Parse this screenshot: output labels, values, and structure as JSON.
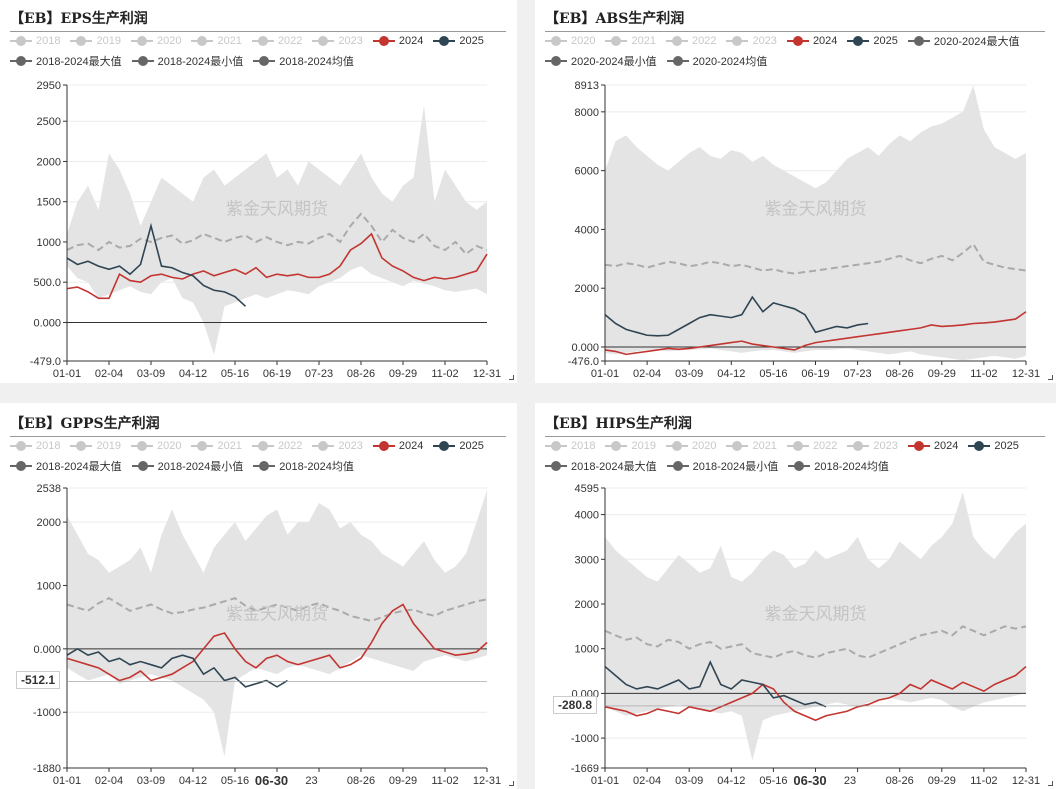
{
  "watermark": "紫金天风期货",
  "colors": {
    "band": "#e4e4e4",
    "s2024": "#c23531",
    "s2025": "#2f4554",
    "avg": "#aaaaaa",
    "off": "#c8c8c8",
    "axis": "#333333",
    "grid": "#ececec"
  },
  "chart_data": [
    {
      "type": "area",
      "title": "【EB】EPS生产利润",
      "legend": [
        {
          "label": "2018",
          "enabled": false
        },
        {
          "label": "2019",
          "enabled": false
        },
        {
          "label": "2020",
          "enabled": false
        },
        {
          "label": "2021",
          "enabled": false
        },
        {
          "label": "2022",
          "enabled": false
        },
        {
          "label": "2023",
          "enabled": false
        },
        {
          "label": "2024",
          "enabled": true,
          "color": "#c23531"
        },
        {
          "label": "2025",
          "enabled": true,
          "color": "#2f4554"
        },
        {
          "label": "2018-2024最大值",
          "enabled": true,
          "color": "#666666"
        },
        {
          "label": "2018-2024最小值",
          "enabled": true,
          "color": "#666666"
        },
        {
          "label": "2018-2024均值",
          "enabled": true,
          "color": "#666666"
        }
      ],
      "ylim": [
        -479,
        2950
      ],
      "ytick_values": [
        -479,
        0,
        500,
        1000,
        1500,
        2000,
        2500,
        2950
      ],
      "ytick_labels": [
        "-479.0",
        "0.000",
        "500.0",
        "1000",
        "1500",
        "2000",
        "2500",
        "2950"
      ],
      "xtick_labels": [
        "01-01",
        "02-04",
        "03-09",
        "04-12",
        "05-16",
        "06-19",
        "07-23",
        "08-26",
        "09-29",
        "11-02",
        "12-31"
      ],
      "cursor": null,
      "max": [
        1100,
        1500,
        1700,
        1400,
        2100,
        1900,
        1600,
        1200,
        1500,
        1800,
        1700,
        1600,
        1500,
        1800,
        1900,
        1700,
        1800,
        1900,
        2000,
        2100,
        1800,
        1900,
        1700,
        2000,
        1900,
        1800,
        1700,
        1900,
        2100,
        1800,
        1600,
        1500,
        1700,
        1800,
        2700,
        1500,
        1900,
        1700,
        1500,
        1400,
        1500
      ],
      "min": [
        700,
        550,
        500,
        300,
        350,
        400,
        450,
        380,
        350,
        500,
        550,
        300,
        250,
        0,
        -400,
        200,
        250,
        300,
        350,
        300,
        350,
        400,
        380,
        350,
        450,
        500,
        550,
        650,
        700,
        600,
        550,
        500,
        450,
        520,
        480,
        450,
        400,
        380,
        400,
        420,
        350
      ],
      "avg": [
        900,
        960,
        980,
        900,
        1000,
        930,
        950,
        1040,
        1000,
        1050,
        1080,
        980,
        1020,
        1100,
        1050,
        1000,
        1050,
        1080,
        1000,
        1060,
        1000,
        960,
        1000,
        980,
        1050,
        1100,
        1000,
        1200,
        1350,
        1200,
        1000,
        1150,
        1050,
        1000,
        1100,
        950,
        900,
        1000,
        850,
        950,
        900
      ],
      "s2024": [
        420,
        440,
        380,
        300,
        300,
        600,
        520,
        500,
        580,
        600,
        560,
        540,
        600,
        640,
        580,
        620,
        660,
        600,
        680,
        560,
        600,
        580,
        600,
        560,
        560,
        600,
        700,
        900,
        980,
        1100,
        800,
        700,
        640,
        560,
        520,
        560,
        540,
        560,
        600,
        640,
        850
      ],
      "s2025": [
        800,
        720,
        760,
        700,
        660,
        700,
        600,
        720,
        1200,
        700,
        680,
        620,
        580,
        460,
        400,
        380,
        320,
        200
      ]
    },
    {
      "type": "area",
      "title": "【EB】ABS生产利润",
      "legend": [
        {
          "label": "2020",
          "enabled": false
        },
        {
          "label": "2021",
          "enabled": false
        },
        {
          "label": "2022",
          "enabled": false
        },
        {
          "label": "2023",
          "enabled": false
        },
        {
          "label": "2024",
          "enabled": true,
          "color": "#c23531"
        },
        {
          "label": "2025",
          "enabled": true,
          "color": "#2f4554"
        },
        {
          "label": "2020-2024最大值",
          "enabled": true,
          "color": "#666666"
        },
        {
          "label": "2020-2024最小值",
          "enabled": true,
          "color": "#666666"
        },
        {
          "label": "2020-2024均值",
          "enabled": true,
          "color": "#666666"
        }
      ],
      "ylim": [
        -476,
        8913
      ],
      "ytick_values": [
        -476,
        0,
        2000,
        4000,
        6000,
        8000,
        8913
      ],
      "ytick_labels": [
        "-476.0",
        "0.000",
        "2000",
        "4000",
        "6000",
        "8000",
        "8913"
      ],
      "xtick_labels": [
        "01-01",
        "02-04",
        "03-09",
        "04-12",
        "05-16",
        "06-19",
        "07-23",
        "08-26",
        "09-29",
        "11-02",
        "12-31"
      ],
      "cursor": null,
      "max": [
        6000,
        7000,
        7200,
        6800,
        6500,
        6200,
        6000,
        6300,
        6600,
        6800,
        6500,
        6400,
        6700,
        6600,
        6300,
        6500,
        6200,
        6000,
        5800,
        5600,
        5400,
        5600,
        6000,
        6400,
        6600,
        6800,
        6500,
        6900,
        7200,
        7000,
        7300,
        7500,
        7600,
        7800,
        8000,
        8900,
        7400,
        6800,
        6600,
        6400,
        6600
      ],
      "min": [
        -200,
        -250,
        -200,
        -150,
        -100,
        -100,
        -150,
        -120,
        -100,
        -80,
        -50,
        -100,
        -150,
        -200,
        -150,
        -100,
        -100,
        -150,
        -200,
        -150,
        -100,
        -100,
        -80,
        -50,
        -100,
        -150,
        -200,
        -250,
        -200,
        -150,
        -250,
        -300,
        -350,
        -400,
        -450,
        -400,
        -350,
        -300,
        -350,
        -400,
        -300
      ],
      "avg": [
        2800,
        2750,
        2850,
        2800,
        2700,
        2800,
        2900,
        2850,
        2750,
        2800,
        2900,
        2850,
        2750,
        2800,
        2700,
        2600,
        2650,
        2550,
        2500,
        2550,
        2600,
        2650,
        2700,
        2750,
        2800,
        2850,
        2900,
        3000,
        3100,
        2950,
        2850,
        3000,
        3100,
        2950,
        3200,
        3500,
        2900,
        2800,
        2700,
        2650,
        2600
      ],
      "s2024": [
        -100,
        -150,
        -250,
        -200,
        -150,
        -100,
        -50,
        -80,
        -50,
        0,
        50,
        100,
        150,
        200,
        100,
        50,
        0,
        -50,
        -100,
        50,
        150,
        200,
        250,
        300,
        350,
        400,
        450,
        500,
        550,
        600,
        650,
        750,
        700,
        720,
        750,
        800,
        820,
        850,
        900,
        950,
        1200
      ],
      "s2025": [
        1100,
        800,
        600,
        500,
        400,
        380,
        400,
        600,
        800,
        1000,
        1100,
        1050,
        1000,
        1100,
        1700,
        1200,
        1500,
        1400,
        1300,
        1100,
        500,
        600,
        700,
        650,
        750,
        800
      ]
    },
    {
      "type": "area",
      "title": "【EB】GPPS生产利润",
      "legend": [
        {
          "label": "2018",
          "enabled": false
        },
        {
          "label": "2019",
          "enabled": false
        },
        {
          "label": "2020",
          "enabled": false
        },
        {
          "label": "2021",
          "enabled": false
        },
        {
          "label": "2022",
          "enabled": false
        },
        {
          "label": "2023",
          "enabled": false
        },
        {
          "label": "2024",
          "enabled": true,
          "color": "#c23531"
        },
        {
          "label": "2025",
          "enabled": true,
          "color": "#2f4554"
        },
        {
          "label": "2018-2024最大值",
          "enabled": true,
          "color": "#666666"
        },
        {
          "label": "2018-2024最小值",
          "enabled": true,
          "color": "#666666"
        },
        {
          "label": "2018-2024均值",
          "enabled": true,
          "color": "#666666"
        }
      ],
      "ylim": [
        -1880,
        2538
      ],
      "ytick_values": [
        -1880,
        -1000,
        0,
        1000,
        2000,
        2538
      ],
      "ytick_labels": [
        "-1880",
        "-1000",
        "0.000",
        "1000",
        "2000",
        "2538"
      ],
      "xtick_labels": [
        "01-01",
        "02-04",
        "03-09",
        "04-12",
        "05-16",
        "",
        "",
        "08-26",
        "09-29",
        "11-02",
        "12-31"
      ],
      "cursor": {
        "x_label": "06-30",
        "x_frac": 0.487,
        "value_label": "-512.1",
        "value": -512.1,
        "x_after": "23"
      },
      "max": [
        2100,
        1800,
        1500,
        1400,
        1200,
        1300,
        1400,
        1600,
        1200,
        1800,
        2200,
        1800,
        1500,
        1200,
        1600,
        1800,
        2000,
        1700,
        1900,
        2100,
        2200,
        1800,
        2000,
        2000,
        2300,
        2200,
        1900,
        2000,
        1800,
        1700,
        1500,
        1400,
        1300,
        1500,
        1700,
        1400,
        1200,
        1300,
        1500,
        2000,
        2500
      ],
      "min": [
        -300,
        -400,
        -500,
        -450,
        -400,
        -550,
        -500,
        -450,
        -400,
        -450,
        -500,
        -600,
        -700,
        -800,
        -1000,
        -1700,
        -500,
        -400,
        -300,
        -350,
        -400,
        -300,
        -250,
        -300,
        -350,
        -400,
        -300,
        -200,
        -100,
        -150,
        -200,
        -250,
        -300,
        -350,
        -200,
        -150,
        -100,
        -150,
        -200,
        -150,
        -100
      ],
      "avg": [
        700,
        650,
        600,
        720,
        800,
        700,
        600,
        650,
        700,
        620,
        560,
        580,
        620,
        650,
        700,
        750,
        800,
        680,
        600,
        650,
        700,
        650,
        600,
        680,
        720,
        650,
        600,
        520,
        480,
        440,
        500,
        560,
        600,
        620,
        560,
        520,
        600,
        650,
        700,
        750,
        780
      ],
      "s2024": [
        -150,
        -200,
        -250,
        -300,
        -400,
        -500,
        -450,
        -350,
        -500,
        -450,
        -400,
        -300,
        -200,
        0,
        200,
        250,
        0,
        -200,
        -300,
        -150,
        -100,
        -200,
        -250,
        -200,
        -150,
        -100,
        -300,
        -250,
        -150,
        100,
        400,
        600,
        700,
        400,
        200,
        0,
        -50,
        -100,
        -80,
        -50,
        100
      ],
      "s2025": [
        -100,
        0,
        -100,
        -50,
        -200,
        -150,
        -250,
        -200,
        -250,
        -300,
        -150,
        -100,
        -150,
        -400,
        -300,
        -500,
        -450,
        -600,
        -550,
        -500,
        -600,
        -500
      ]
    },
    {
      "type": "area",
      "title": "【EB】HIPS生产利润",
      "legend": [
        {
          "label": "2018",
          "enabled": false
        },
        {
          "label": "2019",
          "enabled": false
        },
        {
          "label": "2020",
          "enabled": false
        },
        {
          "label": "2021",
          "enabled": false
        },
        {
          "label": "2022",
          "enabled": false
        },
        {
          "label": "2023",
          "enabled": false
        },
        {
          "label": "2024",
          "enabled": true,
          "color": "#c23531"
        },
        {
          "label": "2025",
          "enabled": true,
          "color": "#2f4554"
        },
        {
          "label": "2018-2024最大值",
          "enabled": true,
          "color": "#666666"
        },
        {
          "label": "2018-2024最小值",
          "enabled": true,
          "color": "#666666"
        },
        {
          "label": "2018-2024均值",
          "enabled": true,
          "color": "#666666"
        }
      ],
      "ylim": [
        -1669,
        4595
      ],
      "ytick_values": [
        -1669,
        -1000,
        0,
        1000,
        2000,
        3000,
        4000,
        4595
      ],
      "ytick_labels": [
        "-1669",
        "-1000",
        "0.000",
        "1000",
        "2000",
        "3000",
        "4000",
        "4595"
      ],
      "xtick_labels": [
        "01-01",
        "02-04",
        "03-09",
        "04-12",
        "05-16",
        "",
        "",
        "08-26",
        "09-29",
        "11-02",
        "12-31"
      ],
      "cursor": {
        "x_label": "06-30",
        "x_frac": 0.487,
        "value_label": "-280.8",
        "value": -280.8,
        "x_after": "23"
      },
      "max": [
        3500,
        3200,
        3000,
        2800,
        2600,
        2500,
        2800,
        3100,
        2900,
        2700,
        2800,
        3300,
        2600,
        2500,
        2700,
        3000,
        3200,
        3100,
        2800,
        2900,
        3200,
        3000,
        3100,
        3200,
        3500,
        3000,
        2800,
        3000,
        3400,
        3200,
        3000,
        3300,
        3500,
        3800,
        4500,
        3500,
        3200,
        3000,
        3300,
        3600,
        3800
      ],
      "min": [
        -300,
        -400,
        -500,
        -450,
        -400,
        -350,
        -300,
        -250,
        -300,
        -350,
        -400,
        -450,
        -400,
        -500,
        -1500,
        -600,
        -500,
        -450,
        -400,
        -350,
        -300,
        -250,
        -200,
        -250,
        -300,
        -200,
        -150,
        -100,
        -150,
        -200,
        -150,
        -100,
        -150,
        -300,
        -400,
        -300,
        -200,
        -150,
        -100,
        -50,
        0
      ],
      "avg": [
        1400,
        1300,
        1200,
        1250,
        1100,
        1050,
        1200,
        1150,
        1000,
        1100,
        1150,
        1000,
        1050,
        1100,
        900,
        850,
        800,
        900,
        950,
        850,
        800,
        900,
        950,
        1000,
        850,
        800,
        900,
        1000,
        1100,
        1200,
        1300,
        1350,
        1400,
        1300,
        1500,
        1400,
        1300,
        1400,
        1500,
        1450,
        1500
      ],
      "s2024": [
        -300,
        -350,
        -400,
        -500,
        -450,
        -350,
        -400,
        -450,
        -300,
        -350,
        -400,
        -300,
        -200,
        -100,
        0,
        200,
        100,
        -200,
        -400,
        -500,
        -600,
        -500,
        -450,
        -400,
        -300,
        -250,
        -150,
        -100,
        0,
        200,
        100,
        300,
        200,
        100,
        250,
        150,
        50,
        200,
        300,
        400,
        600
      ],
      "s2025": [
        600,
        400,
        200,
        100,
        150,
        100,
        200,
        300,
        100,
        150,
        700,
        200,
        100,
        300,
        250,
        200,
        -100,
        -50,
        -150,
        -250,
        -200,
        -300
      ]
    }
  ]
}
